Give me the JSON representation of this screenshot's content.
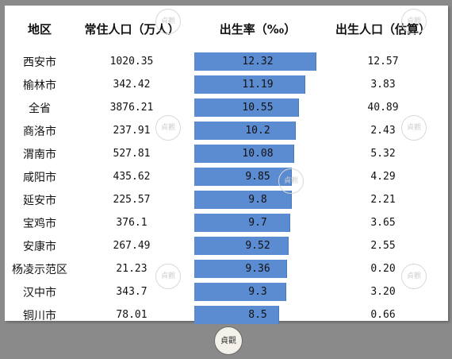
{
  "table": {
    "headers": {
      "region": "地区",
      "population": "常住人口（万人）",
      "birth_rate": "出生率（%₀）",
      "births": "出生人口（估算）"
    },
    "max_rate": 12.32,
    "bar_color": "#5b8bd0",
    "rows": [
      {
        "region": "西安市",
        "population": "1020.35",
        "birth_rate": "12.32",
        "births": "12.57",
        "rate_value": 12.32
      },
      {
        "region": "榆林市",
        "population": "342.42",
        "birth_rate": "11.19",
        "births": "3.83",
        "rate_value": 11.19
      },
      {
        "region": "全省",
        "population": "3876.21",
        "birth_rate": "10.55",
        "births": "40.89",
        "rate_value": 10.55
      },
      {
        "region": "商洛市",
        "population": "237.91",
        "birth_rate": "10.2",
        "births": "2.43",
        "rate_value": 10.2
      },
      {
        "region": "渭南市",
        "population": "527.81",
        "birth_rate": "10.08",
        "births": "5.32",
        "rate_value": 10.08
      },
      {
        "region": "咸阳市",
        "population": "435.62",
        "birth_rate": "9.85",
        "births": "4.29",
        "rate_value": 9.85
      },
      {
        "region": "延安市",
        "population": "225.57",
        "birth_rate": "9.8",
        "births": "2.21",
        "rate_value": 9.8
      },
      {
        "region": "宝鸡市",
        "population": "376.1",
        "birth_rate": "9.7",
        "births": "3.65",
        "rate_value": 9.7
      },
      {
        "region": "安康市",
        "population": "267.49",
        "birth_rate": "9.52",
        "births": "2.55",
        "rate_value": 9.52
      },
      {
        "region": "杨凌示范区",
        "population": "21.23",
        "birth_rate": "9.36",
        "births": "0.20",
        "rate_value": 9.36
      },
      {
        "region": "汉中市",
        "population": "343.7",
        "birth_rate": "9.3",
        "births": "3.20",
        "rate_value": 9.3
      },
      {
        "region": "铜川市",
        "population": "78.01",
        "birth_rate": "8.5",
        "births": "0.66",
        "rate_value": 8.5
      }
    ]
  },
  "watermark": {
    "text": "貞觀"
  },
  "logo": {
    "text": "貞觀"
  }
}
